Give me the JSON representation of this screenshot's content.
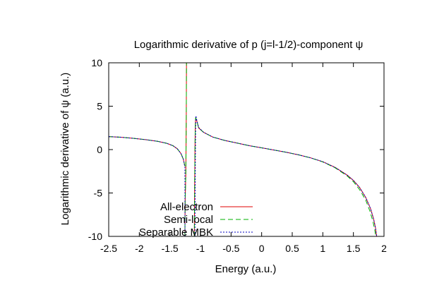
{
  "chart_data": {
    "type": "line",
    "title": "Logarithmic derivative of p (j=l-1/2)-component ψ",
    "xlabel": "Energy (a.u.)",
    "ylabel": "Logarithmic derivative of ψ (a.u.)",
    "xlim": [
      -2.5,
      2.0
    ],
    "ylim": [
      -10,
      10
    ],
    "xticks": [
      "-2.5",
      "-2",
      "-1.5",
      "-1",
      "-0.5",
      "0",
      "0.5",
      "1",
      "1.5",
      "2"
    ],
    "yticks": [
      "10",
      "5",
      "0",
      "-5",
      "-10"
    ],
    "grid": false,
    "legend_position": "bottom-left",
    "series": [
      {
        "name": "All-electron",
        "color": "#e00000",
        "dash": "solid",
        "segments": [
          [
            [
              -2.5,
              1.5
            ],
            [
              -2.3,
              1.42
            ],
            [
              -2.1,
              1.3
            ],
            [
              -1.9,
              1.15
            ],
            [
              -1.7,
              0.95
            ],
            [
              -1.55,
              0.72
            ],
            [
              -1.45,
              0.45
            ],
            [
              -1.38,
              0.1
            ],
            [
              -1.32,
              -0.45
            ],
            [
              -1.28,
              -1.1
            ],
            [
              -1.255,
              -1.9
            ]
          ],
          [
            [
              -1.255,
              -10
            ],
            [
              -1.25,
              -6
            ],
            [
              -1.24,
              -3.0
            ],
            [
              -1.235,
              0.5
            ],
            [
              -1.232,
              4
            ],
            [
              -1.228,
              10
            ]
          ],
          [
            [
              -1.1,
              -10
            ],
            [
              -1.095,
              -4
            ],
            [
              -1.09,
              0
            ],
            [
              -1.085,
              2.5
            ],
            [
              -1.08,
              3.7
            ],
            [
              -1.06,
              3.3
            ],
            [
              -1.03,
              2.5
            ],
            [
              -0.95,
              2.0
            ],
            [
              -0.8,
              1.45
            ],
            [
              -0.6,
              1.05
            ],
            [
              -0.4,
              0.75
            ],
            [
              -0.2,
              0.45
            ],
            [
              0.0,
              0.2
            ],
            [
              0.2,
              -0.05
            ],
            [
              0.4,
              -0.3
            ],
            [
              0.6,
              -0.6
            ],
            [
              0.8,
              -0.95
            ],
            [
              1.0,
              -1.4
            ],
            [
              1.2,
              -2.05
            ],
            [
              1.4,
              -2.95
            ],
            [
              1.5,
              -3.55
            ],
            [
              1.6,
              -4.35
            ],
            [
              1.7,
              -5.5
            ],
            [
              1.78,
              -6.8
            ],
            [
              1.83,
              -8.0
            ],
            [
              1.86,
              -9.0
            ],
            [
              1.88,
              -10
            ]
          ]
        ]
      },
      {
        "name": "Semi-local",
        "color": "#00b000",
        "dash": "7 4",
        "segments": [
          [
            [
              -2.5,
              1.5
            ],
            [
              -2.3,
              1.42
            ],
            [
              -2.1,
              1.3
            ],
            [
              -1.9,
              1.15
            ],
            [
              -1.7,
              0.95
            ],
            [
              -1.55,
              0.72
            ],
            [
              -1.45,
              0.45
            ],
            [
              -1.38,
              0.1
            ],
            [
              -1.32,
              -0.45
            ],
            [
              -1.28,
              -1.1
            ],
            [
              -1.255,
              -1.9
            ]
          ],
          [
            [
              -1.255,
              -10
            ],
            [
              -1.25,
              -6
            ],
            [
              -1.24,
              -3.0
            ],
            [
              -1.235,
              0.5
            ],
            [
              -1.232,
              4
            ],
            [
              -1.228,
              10
            ]
          ],
          [
            [
              -1.1,
              -10
            ],
            [
              -1.095,
              -4
            ],
            [
              -1.09,
              0
            ],
            [
              -1.085,
              2.5
            ],
            [
              -1.08,
              3.7
            ],
            [
              -1.06,
              3.3
            ],
            [
              -1.03,
              2.5
            ],
            [
              -0.95,
              2.0
            ],
            [
              -0.8,
              1.45
            ],
            [
              -0.6,
              1.05
            ],
            [
              -0.4,
              0.75
            ],
            [
              -0.2,
              0.45
            ],
            [
              0.0,
              0.2
            ],
            [
              0.2,
              -0.05
            ],
            [
              0.4,
              -0.3
            ],
            [
              0.6,
              -0.6
            ],
            [
              0.8,
              -0.95
            ],
            [
              1.0,
              -1.42
            ],
            [
              1.2,
              -2.1
            ],
            [
              1.4,
              -3.05
            ],
            [
              1.5,
              -3.7
            ],
            [
              1.6,
              -4.6
            ],
            [
              1.7,
              -5.8
            ],
            [
              1.77,
              -7.1
            ],
            [
              1.82,
              -8.3
            ],
            [
              1.85,
              -9.3
            ],
            [
              1.865,
              -10
            ]
          ]
        ]
      },
      {
        "name": "Separable MBK",
        "color": "#0000c0",
        "dash": "2 2",
        "segments": [
          [
            [
              -2.5,
              1.5
            ],
            [
              -2.3,
              1.42
            ],
            [
              -2.1,
              1.3
            ],
            [
              -1.9,
              1.15
            ],
            [
              -1.7,
              0.95
            ],
            [
              -1.55,
              0.72
            ],
            [
              -1.45,
              0.45
            ],
            [
              -1.38,
              0.1
            ],
            [
              -1.32,
              -0.45
            ],
            [
              -1.28,
              -1.1
            ],
            [
              -1.255,
              -2.0
            ],
            [
              -1.253,
              -10
            ]
          ],
          [
            [
              -1.09,
              -10
            ],
            [
              -1.086,
              -4
            ],
            [
              -1.082,
              0
            ],
            [
              -1.078,
              2.5
            ],
            [
              -1.075,
              3.9
            ],
            [
              -1.06,
              3.4
            ],
            [
              -1.03,
              2.55
            ],
            [
              -0.95,
              2.0
            ],
            [
              -0.8,
              1.45
            ],
            [
              -0.6,
              1.05
            ],
            [
              -0.4,
              0.75
            ],
            [
              -0.2,
              0.45
            ],
            [
              0.0,
              0.2
            ],
            [
              0.2,
              -0.05
            ],
            [
              0.4,
              -0.3
            ],
            [
              0.6,
              -0.6
            ],
            [
              0.8,
              -0.95
            ],
            [
              1.0,
              -1.4
            ],
            [
              1.2,
              -2.05
            ],
            [
              1.4,
              -2.95
            ],
            [
              1.5,
              -3.55
            ],
            [
              1.6,
              -4.35
            ],
            [
              1.7,
              -5.5
            ],
            [
              1.78,
              -6.8
            ],
            [
              1.83,
              -8.0
            ],
            [
              1.86,
              -9.0
            ],
            [
              1.88,
              -10
            ]
          ]
        ]
      }
    ]
  }
}
